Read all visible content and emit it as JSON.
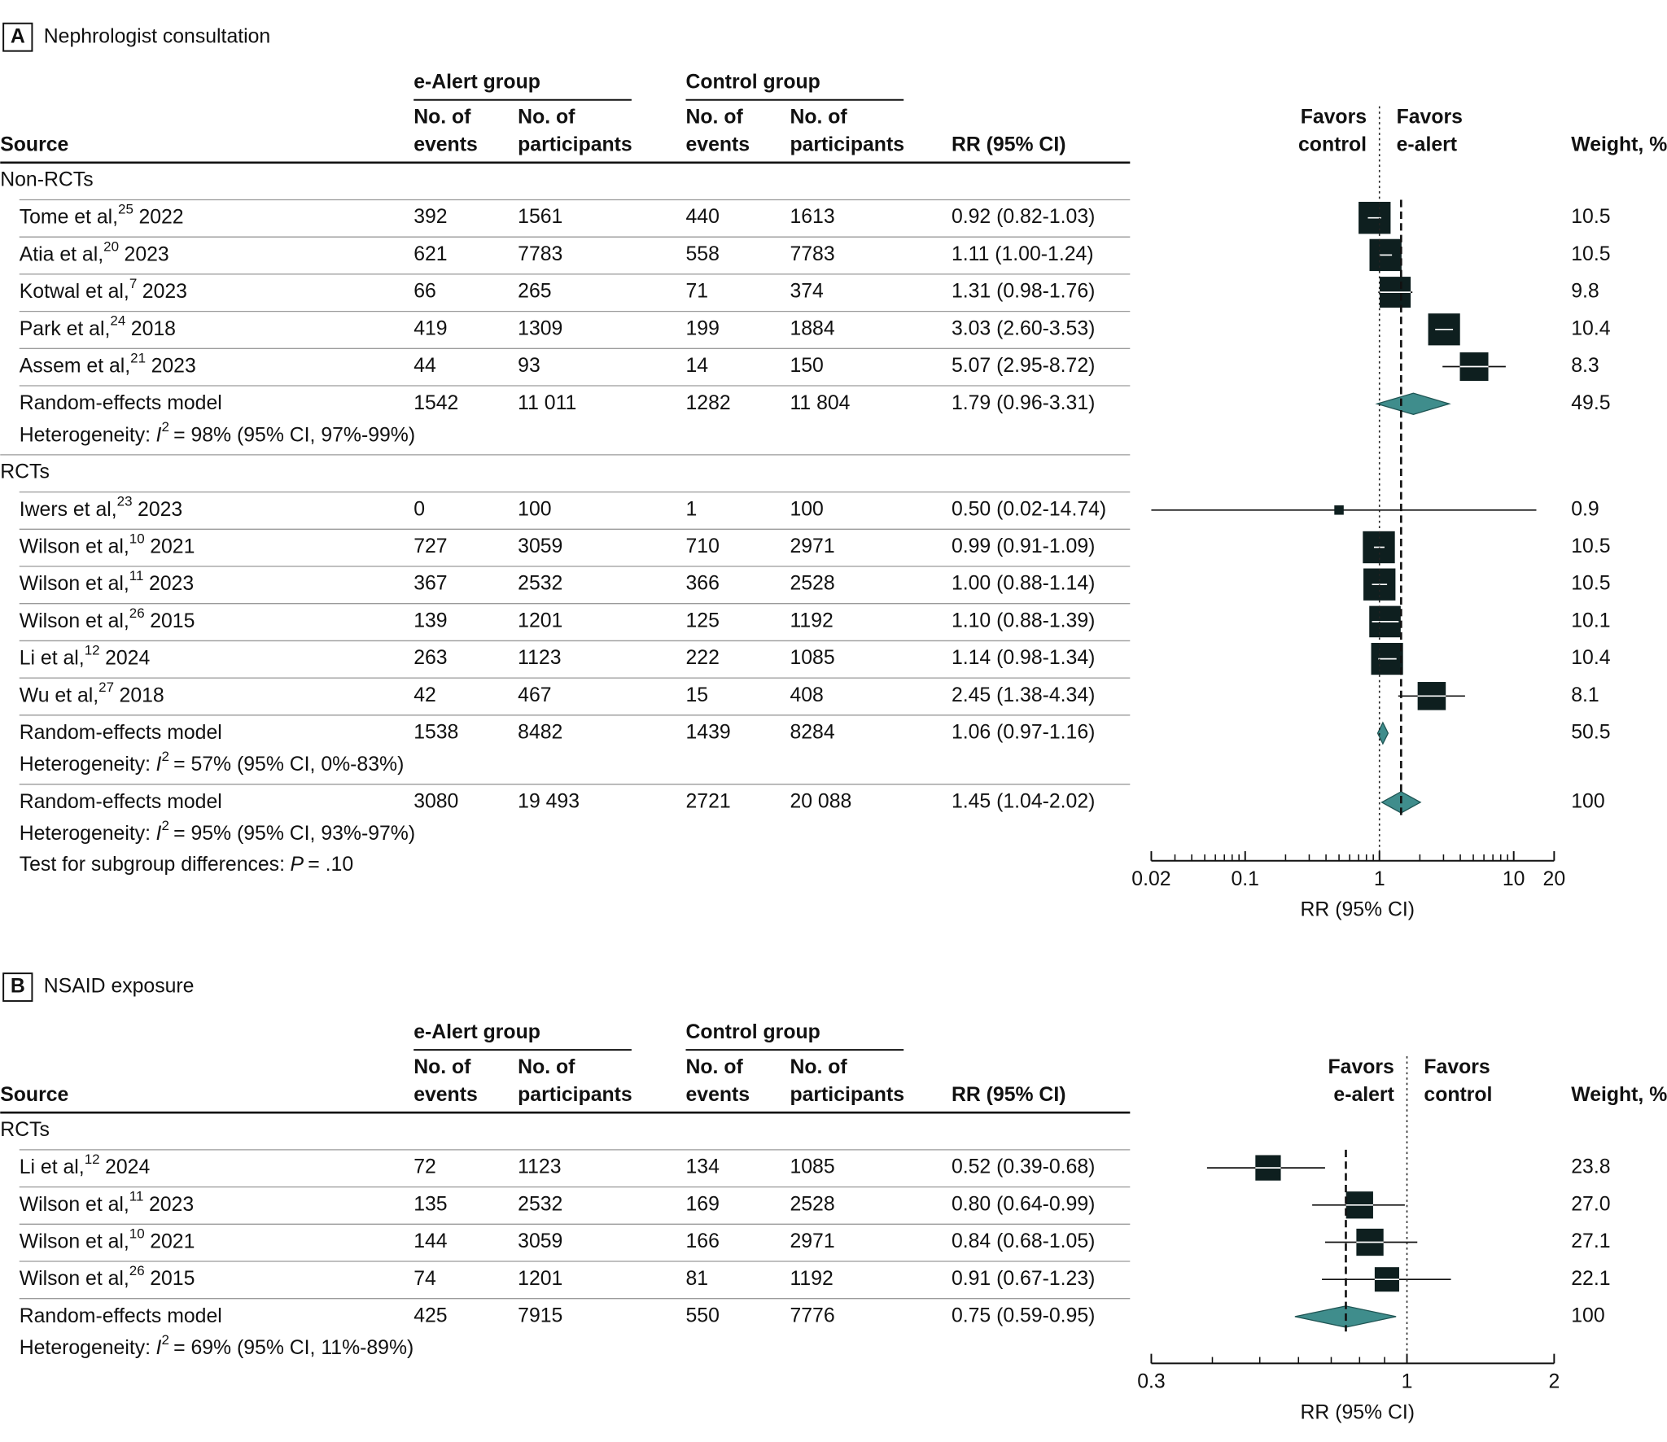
{
  "chart_data": [
    {
      "type": "forest",
      "panel": "A",
      "title": "Nephrologist consultation",
      "header": {
        "source": "Source",
        "ealert": "e-Alert group",
        "control": "Control group",
        "events": [
          "No. of",
          "events"
        ],
        "participants": [
          "No. of",
          "participants"
        ],
        "rr": "RR (95% CI)",
        "weight": "Weight, %"
      },
      "favors_left": [
        "Favors",
        "control"
      ],
      "favors_right": [
        "Favors",
        "e-alert"
      ],
      "xlabel": "RR (95% CI)",
      "log_x": true,
      "xlim": [
        0.02,
        20
      ],
      "xticks": [
        0.02,
        0.1,
        1,
        10,
        20
      ],
      "minor_xticks": [
        0.03,
        0.04,
        0.05,
        0.06,
        0.07,
        0.08,
        0.09,
        0.2,
        0.3,
        0.4,
        0.5,
        0.6,
        0.7,
        0.8,
        0.9,
        2,
        3,
        4,
        5,
        6,
        7,
        8,
        9
      ],
      "ref_line": 1,
      "square_color": "#0e1f1f",
      "diamond_color": "#3f8d8c",
      "subgroups": [
        {
          "label": "Non-RCTs",
          "studies": [
            {
              "name": "Tome et al,",
              "ref": "25",
              "year": "2022",
              "e_events": "392",
              "e_n": "1561",
              "c_events": "440",
              "c_n": "1613",
              "rr": 0.92,
              "lo": 0.82,
              "hi": 1.03,
              "rr_label": "0.92 (0.82-1.03)",
              "weight": 10.5
            },
            {
              "name": "Atia et al,",
              "ref": "20",
              "year": "2023",
              "e_events": "621",
              "e_n": "7783",
              "c_events": "558",
              "c_n": "7783",
              "rr": 1.11,
              "lo": 1.0,
              "hi": 1.24,
              "rr_label": "1.11 (1.00-1.24)",
              "weight": 10.5
            },
            {
              "name": "Kotwal et al,",
              "ref": "7",
              "year": "2023",
              "e_events": "66",
              "e_n": "265",
              "c_events": "71",
              "c_n": "374",
              "rr": 1.31,
              "lo": 0.98,
              "hi": 1.76,
              "rr_label": "1.31 (0.98-1.76)",
              "weight": 9.8
            },
            {
              "name": "Park et al,",
              "ref": "24",
              "year": "2018",
              "e_events": "419",
              "e_n": "1309",
              "c_events": "199",
              "c_n": "1884",
              "rr": 3.03,
              "lo": 2.6,
              "hi": 3.53,
              "rr_label": "3.03 (2.60-3.53)",
              "weight": 10.4
            },
            {
              "name": "Assem et al,",
              "ref": "21",
              "year": "2023",
              "e_events": "44",
              "e_n": "93",
              "c_events": "14",
              "c_n": "150",
              "rr": 5.07,
              "lo": 2.95,
              "hi": 8.72,
              "rr_label": "5.07 (2.95-8.72)",
              "weight": 8.3
            }
          ],
          "pooled": {
            "name": "Random-effects model",
            "e_events": "1542",
            "e_n": "11 011",
            "c_events": "1282",
            "c_n": "11 804",
            "rr": 1.79,
            "lo": 0.96,
            "hi": 3.31,
            "rr_label": "1.79 (0.96-3.31)",
            "weight": 49.5,
            "heterogeneity": {
              "label": "Heterogeneity:",
              "stat": "I",
              "sup": "2",
              "text": "= 98% (95% CI, 97%-99%)"
            }
          }
        },
        {
          "label": "RCTs",
          "studies": [
            {
              "name": "Iwers et al,",
              "ref": "23",
              "year": "2023",
              "e_events": "0",
              "e_n": "100",
              "c_events": "1",
              "c_n": "100",
              "rr": 0.5,
              "lo": 0.02,
              "hi": 14.74,
              "rr_label": "0.50 (0.02-14.74)",
              "weight": 0.9
            },
            {
              "name": "Wilson et al,",
              "ref": "10",
              "year": "2021",
              "e_events": "727",
              "e_n": "3059",
              "c_events": "710",
              "c_n": "2971",
              "rr": 0.99,
              "lo": 0.91,
              "hi": 1.09,
              "rr_label": "0.99 (0.91-1.09)",
              "weight": 10.5
            },
            {
              "name": "Wilson et al,",
              "ref": "11",
              "year": "2023",
              "e_events": "367",
              "e_n": "2532",
              "c_events": "366",
              "c_n": "2528",
              "rr": 1.0,
              "lo": 0.88,
              "hi": 1.14,
              "rr_label": "1.00 (0.88-1.14)",
              "weight": 10.5
            },
            {
              "name": "Wilson et al,",
              "ref": "26",
              "year": "2015",
              "e_events": "139",
              "e_n": "1201",
              "c_events": "125",
              "c_n": "1192",
              "rr": 1.1,
              "lo": 0.88,
              "hi": 1.39,
              "rr_label": "1.10 (0.88-1.39)",
              "weight": 10.1
            },
            {
              "name": "Li et al,",
              "ref": "12",
              "year": "2024",
              "e_events": "263",
              "e_n": "1123",
              "c_events": "222",
              "c_n": "1085",
              "rr": 1.14,
              "lo": 0.98,
              "hi": 1.34,
              "rr_label": "1.14 (0.98-1.34)",
              "weight": 10.4
            },
            {
              "name": "Wu et al,",
              "ref": "27",
              "year": "2018",
              "e_events": "42",
              "e_n": "467",
              "c_events": "15",
              "c_n": "408",
              "rr": 2.45,
              "lo": 1.38,
              "hi": 4.34,
              "rr_label": "2.45 (1.38-4.34)",
              "weight": 8.1
            }
          ],
          "pooled": {
            "name": "Random-effects model",
            "e_events": "1538",
            "e_n": "8482",
            "c_events": "1439",
            "c_n": "8284",
            "rr": 1.06,
            "lo": 0.97,
            "hi": 1.16,
            "rr_label": "1.06 (0.97-1.16)",
            "weight": 50.5,
            "heterogeneity": {
              "label": "Heterogeneity:",
              "stat": "I",
              "sup": "2",
              "text": "= 57% (95% CI, 0%-83%)"
            }
          }
        }
      ],
      "overall": {
        "name": "Random-effects model",
        "e_events": "3080",
        "e_n": "19 493",
        "c_events": "2721",
        "c_n": "20 088",
        "rr": 1.45,
        "lo": 1.04,
        "hi": 2.02,
        "rr_label": "1.45 (1.04-2.02)",
        "weight": 100,
        "heterogeneity": {
          "label": "Heterogeneity:",
          "stat": "I",
          "sup": "2",
          "text": "= 95% (95% CI, 93%-97%)"
        }
      },
      "subgroup_test": {
        "label": "Test for subgroup differences:",
        "stat": "P",
        "text": "= .10"
      }
    },
    {
      "type": "forest",
      "panel": "B",
      "title": "NSAID exposure",
      "header": {
        "source": "Source",
        "ealert": "e-Alert group",
        "control": "Control group",
        "events": [
          "No. of",
          "events"
        ],
        "participants": [
          "No. of",
          "participants"
        ],
        "rr": "RR (95% CI)",
        "weight": "Weight, %"
      },
      "favors_left": [
        "Favors",
        "e-alert"
      ],
      "favors_right": [
        "Favors",
        "control"
      ],
      "xlabel": "RR (95% CI)",
      "log_x": true,
      "xlim": [
        0.3,
        2
      ],
      "xticks": [
        0.3,
        1,
        2
      ],
      "minor_xticks": [
        0.4,
        0.5,
        0.6,
        0.7,
        0.8,
        0.9
      ],
      "ref_line": 1,
      "square_color": "#0e1f1f",
      "diamond_color": "#3f8d8c",
      "subgroups": [
        {
          "label": "RCTs",
          "studies": [
            {
              "name": "Li et al,",
              "ref": "12",
              "year": "2024",
              "e_events": "72",
              "e_n": "1123",
              "c_events": "134",
              "c_n": "1085",
              "rr": 0.52,
              "lo": 0.39,
              "hi": 0.68,
              "rr_label": "0.52 (0.39-0.68)",
              "weight": 23.8
            },
            {
              "name": "Wilson et al,",
              "ref": "11",
              "year": "2023",
              "e_events": "135",
              "e_n": "2532",
              "c_events": "169",
              "c_n": "2528",
              "rr": 0.8,
              "lo": 0.64,
              "hi": 0.99,
              "rr_label": "0.80 (0.64-0.99)",
              "weight": 27.0,
              "weight_label": "27.0"
            },
            {
              "name": "Wilson et al,",
              "ref": "10",
              "year": "2021",
              "e_events": "144",
              "e_n": "3059",
              "c_events": "166",
              "c_n": "2971",
              "rr": 0.84,
              "lo": 0.68,
              "hi": 1.05,
              "rr_label": "0.84 (0.68-1.05)",
              "weight": 27.1
            },
            {
              "name": "Wilson et al,",
              "ref": "26",
              "year": "2015",
              "e_events": "74",
              "e_n": "1201",
              "c_events": "81",
              "c_n": "1192",
              "rr": 0.91,
              "lo": 0.67,
              "hi": 1.23,
              "rr_label": "0.91 (0.67-1.23)",
              "weight": 22.1
            }
          ],
          "pooled": {
            "name": "Random-effects model",
            "e_events": "425",
            "e_n": "7915",
            "c_events": "550",
            "c_n": "7776",
            "rr": 0.75,
            "lo": 0.59,
            "hi": 0.95,
            "rr_label": "0.75 (0.59-0.95)",
            "weight": 100,
            "heterogeneity": {
              "label": "Heterogeneity:",
              "stat": "I",
              "sup": "2",
              "text": "= 69% (95% CI, 11%-89%)"
            }
          }
        }
      ]
    }
  ]
}
